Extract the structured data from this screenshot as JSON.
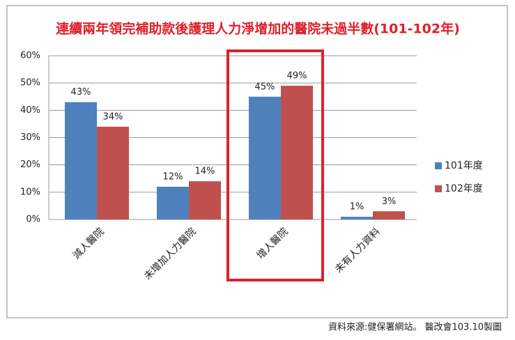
{
  "chart_data": {
    "type": "bar",
    "title": "連續兩年領完補助款後護理人力淨增加的醫院未過半數(101-102年)",
    "categories": [
      "減人醫院",
      "未增加人力醫院",
      "增人醫院",
      "未有人力資料"
    ],
    "series": [
      {
        "name": "101年度",
        "color": "#4f81bd",
        "values": [
          43,
          12,
          45,
          1
        ],
        "value_labels": [
          "43%",
          "12%",
          "45%",
          "1%"
        ]
      },
      {
        "name": "102年度",
        "color": "#c0504d",
        "values": [
          34,
          14,
          49,
          3
        ],
        "value_labels": [
          "34%",
          "14%",
          "49%",
          "3%"
        ]
      }
    ],
    "ylim": [
      0,
      60
    ],
    "yticks": [
      {
        "value": 0,
        "label": "0%"
      },
      {
        "value": 10,
        "label": "10%"
      },
      {
        "value": 20,
        "label": "20%"
      },
      {
        "value": 30,
        "label": "30%"
      },
      {
        "value": 40,
        "label": "40%"
      },
      {
        "value": 50,
        "label": "50%"
      },
      {
        "value": 60,
        "label": "60%"
      }
    ],
    "grid": true,
    "legend": "right",
    "source": "資料來源:健保署網站。 醫改會103.10製圖"
  }
}
